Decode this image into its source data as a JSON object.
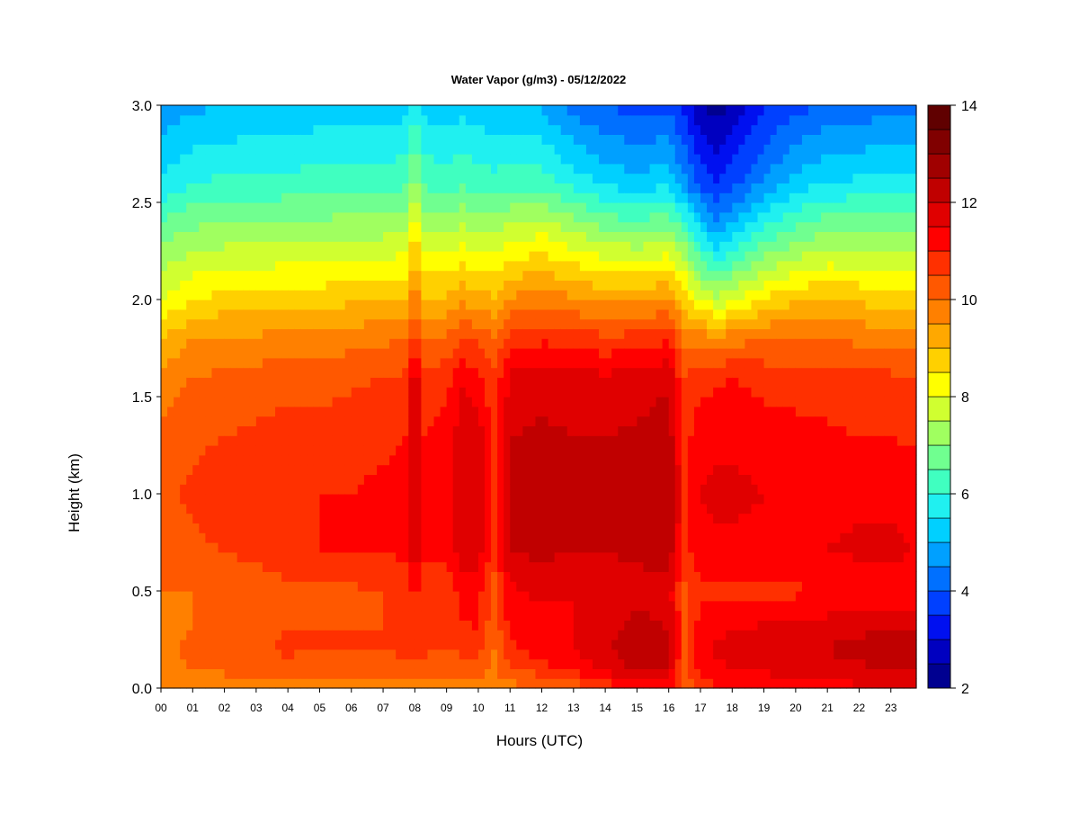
{
  "chart_data": {
    "type": "heatmap",
    "title": "Water Vapor (g/m3) - 05/12/2022",
    "xlabel": "Hours (UTC)",
    "ylabel": "Height (km)",
    "x_ticks": [
      "00",
      "01",
      "02",
      "03",
      "04",
      "05",
      "06",
      "07",
      "08",
      "09",
      "10",
      "11",
      "12",
      "13",
      "14",
      "15",
      "16",
      "17",
      "18",
      "19",
      "20",
      "21",
      "22",
      "23"
    ],
    "x_range": [
      0,
      23.8
    ],
    "y_ticks": [
      "0.0",
      "0.5",
      "1.0",
      "1.5",
      "2.0",
      "2.5",
      "3.0"
    ],
    "y_range": [
      0,
      3
    ],
    "colorbar": {
      "ticks": [
        "2",
        "4",
        "6",
        "8",
        "10",
        "12",
        "14"
      ],
      "range": [
        2,
        14
      ],
      "step": 0.5,
      "colors": [
        "#000090",
        "#0000c0",
        "#0010f0",
        "#0040ff",
        "#0070ff",
        "#00a0ff",
        "#00d0ff",
        "#20f0f0",
        "#40ffc0",
        "#70ff90",
        "#a0ff60",
        "#d0ff30",
        "#ffff00",
        "#ffd000",
        "#ffa800",
        "#ff8000",
        "#ff5800",
        "#ff3000",
        "#ff0000",
        "#e00000",
        "#c00000",
        "#a00000",
        "#800000",
        "#600000"
      ]
    },
    "heights_km": [
      0.0,
      0.1,
      0.2,
      0.3,
      0.5,
      0.7,
      1.0,
      1.3,
      1.6,
      1.8,
      2.0,
      2.3,
      2.6,
      3.0
    ],
    "columns": [
      {
        "hour": 0.0,
        "profile": [
          9.6,
          9.8,
          9.9,
          9.9,
          10.0,
          10.1,
          10.4,
          10.1,
          9.7,
          9.0,
          8.0,
          7.0,
          5.6,
          4.6
        ]
      },
      {
        "hour": 1.0,
        "profile": [
          9.6,
          10.0,
          10.1,
          10.0,
          10.0,
          10.4,
          10.6,
          10.4,
          10.0,
          9.5,
          8.5,
          7.3,
          6.0,
          4.9
        ]
      },
      {
        "hour": 2.0,
        "profile": [
          9.7,
          10.1,
          10.2,
          10.2,
          10.1,
          10.5,
          10.7,
          10.5,
          10.1,
          9.6,
          8.7,
          7.4,
          6.1,
          5.0
        ]
      },
      {
        "hour": 3.0,
        "profile": [
          9.6,
          10.2,
          10.4,
          10.3,
          10.2,
          10.6,
          10.8,
          10.6,
          10.2,
          9.6,
          8.7,
          7.4,
          6.1,
          5.1
        ]
      },
      {
        "hour": 4.0,
        "profile": [
          9.7,
          10.3,
          10.6,
          10.5,
          10.3,
          10.9,
          10.9,
          10.7,
          10.3,
          9.7,
          8.8,
          7.5,
          6.2,
          5.1
        ]
      },
      {
        "hour": 5.0,
        "profile": [
          9.7,
          10.2,
          10.5,
          10.5,
          10.4,
          11.0,
          11.0,
          10.7,
          10.3,
          9.7,
          8.8,
          7.5,
          6.2,
          5.2
        ]
      },
      {
        "hour": 6.0,
        "profile": [
          9.7,
          10.2,
          10.5,
          10.5,
          10.4,
          11.0,
          11.0,
          10.8,
          10.4,
          9.8,
          8.9,
          7.6,
          6.3,
          5.2
        ]
      },
      {
        "hour": 7.0,
        "profile": [
          9.7,
          10.3,
          10.5,
          10.5,
          10.5,
          11.0,
          11.1,
          10.9,
          10.5,
          9.9,
          9.0,
          7.6,
          6.3,
          5.2
        ]
      },
      {
        "hour": 7.7,
        "profile": [
          9.8,
          10.3,
          10.6,
          10.6,
          10.6,
          11.1,
          11.2,
          11.0,
          10.6,
          10.0,
          9.0,
          7.7,
          6.4,
          5.3
        ]
      },
      {
        "hour": 8.0,
        "profile": [
          9.9,
          10.4,
          10.8,
          10.9,
          11.2,
          11.9,
          12.1,
          12.2,
          12.0,
          10.8,
          9.9,
          8.8,
          7.3,
          5.8
        ]
      },
      {
        "hour": 8.3,
        "profile": [
          9.8,
          10.3,
          10.6,
          10.6,
          10.6,
          11.1,
          11.2,
          11.0,
          10.6,
          10.0,
          9.1,
          7.7,
          6.4,
          5.3
        ]
      },
      {
        "hour": 9.0,
        "profile": [
          9.8,
          10.2,
          10.5,
          10.5,
          10.6,
          11.2,
          11.3,
          11.2,
          10.8,
          10.1,
          9.1,
          7.7,
          6.3,
          5.2
        ]
      },
      {
        "hour": 9.5,
        "profile": [
          9.8,
          10.3,
          10.6,
          10.9,
          11.2,
          11.8,
          11.9,
          11.8,
          11.4,
          10.4,
          9.4,
          7.9,
          6.4,
          5.3
        ]
      },
      {
        "hour": 10.0,
        "profile": [
          9.8,
          10.3,
          10.7,
          11.0,
          11.2,
          11.7,
          11.8,
          11.7,
          11.2,
          10.4,
          9.3,
          7.8,
          6.3,
          5.2
        ]
      },
      {
        "hour": 10.5,
        "profile": [
          9.7,
          9.9,
          10.0,
          10.1,
          10.3,
          10.8,
          11.0,
          10.9,
          10.6,
          10.0,
          9.1,
          7.7,
          6.2,
          5.1
        ]
      },
      {
        "hour": 11.0,
        "profile": [
          9.8,
          10.4,
          10.9,
          11.1,
          11.4,
          12.0,
          12.1,
          12.0,
          11.6,
          10.7,
          9.6,
          8.0,
          6.3,
          5.1
        ]
      },
      {
        "hour": 12.0,
        "profile": [
          9.9,
          10.8,
          11.2,
          11.3,
          11.6,
          12.1,
          12.2,
          12.1,
          11.8,
          10.9,
          9.8,
          8.2,
          6.3,
          4.9
        ]
      },
      {
        "hour": 13.0,
        "profile": [
          10.1,
          11.2,
          11.5,
          11.5,
          11.5,
          12.0,
          12.2,
          12.0,
          11.7,
          10.8,
          9.6,
          7.8,
          5.8,
          4.3
        ]
      },
      {
        "hour": 14.0,
        "profile": [
          10.6,
          11.6,
          11.9,
          11.8,
          11.6,
          12.0,
          12.2,
          12.0,
          11.6,
          10.6,
          9.4,
          7.4,
          5.4,
          4.0
        ]
      },
      {
        "hour": 15.0,
        "profile": [
          11.1,
          12.1,
          12.5,
          12.2,
          11.8,
          12.1,
          12.3,
          12.1,
          11.7,
          10.7,
          9.4,
          7.3,
          5.2,
          3.8
        ]
      },
      {
        "hour": 16.0,
        "profile": [
          11.2,
          11.9,
          12.3,
          12.0,
          11.7,
          12.3,
          12.5,
          12.3,
          11.9,
          10.9,
          9.6,
          7.5,
          5.4,
          3.9
        ]
      },
      {
        "hour": 16.5,
        "profile": [
          10.2,
          10.3,
          10.4,
          10.5,
          10.4,
          10.8,
          11.0,
          10.8,
          10.5,
          9.9,
          8.8,
          6.9,
          4.6,
          3.3
        ]
      },
      {
        "hour": 17.0,
        "profile": [
          10.8,
          11.2,
          11.4,
          11.3,
          10.8,
          11.3,
          11.5,
          11.3,
          10.8,
          9.8,
          8.0,
          5.8,
          3.9,
          2.6
        ]
      },
      {
        "hour": 17.5,
        "profile": [
          10.9,
          11.4,
          11.6,
          11.4,
          10.9,
          11.4,
          11.6,
          11.4,
          10.9,
          9.7,
          7.6,
          5.2,
          3.5,
          2.3
        ]
      },
      {
        "hour": 18.0,
        "profile": [
          11.0,
          11.5,
          11.7,
          11.5,
          10.9,
          11.4,
          11.6,
          11.4,
          11.0,
          9.8,
          7.9,
          5.6,
          3.8,
          2.6
        ]
      },
      {
        "hour": 19.0,
        "profile": [
          11.1,
          11.6,
          11.8,
          11.6,
          10.9,
          11.4,
          11.5,
          11.3,
          10.8,
          10.0,
          8.6,
          6.4,
          4.6,
          3.4
        ]
      },
      {
        "hour": 20.0,
        "profile": [
          11.2,
          11.7,
          11.9,
          11.7,
          10.9,
          11.5,
          11.5,
          11.2,
          10.7,
          10.0,
          8.9,
          7.0,
          5.2,
          3.8
        ]
      },
      {
        "hour": 21.0,
        "profile": [
          11.3,
          11.8,
          12.0,
          11.8,
          11.0,
          11.5,
          11.4,
          11.1,
          10.7,
          10.0,
          9.0,
          7.3,
          5.5,
          4.1
        ]
      },
      {
        "hour": 22.0,
        "profile": [
          11.4,
          11.9,
          12.2,
          11.9,
          11.0,
          11.6,
          11.4,
          11.0,
          10.6,
          9.9,
          8.9,
          7.3,
          5.6,
          4.2
        ]
      },
      {
        "hour": 23.0,
        "profile": [
          11.5,
          12.1,
          12.4,
          12.0,
          11.1,
          11.6,
          11.4,
          11.0,
          10.6,
          9.8,
          8.8,
          7.3,
          5.6,
          4.3
        ]
      },
      {
        "hour": 23.8,
        "profile": [
          11.5,
          12.0,
          12.3,
          11.9,
          11.1,
          11.5,
          11.3,
          10.9,
          10.5,
          9.8,
          8.7,
          7.2,
          5.6,
          4.3
        ]
      }
    ]
  }
}
